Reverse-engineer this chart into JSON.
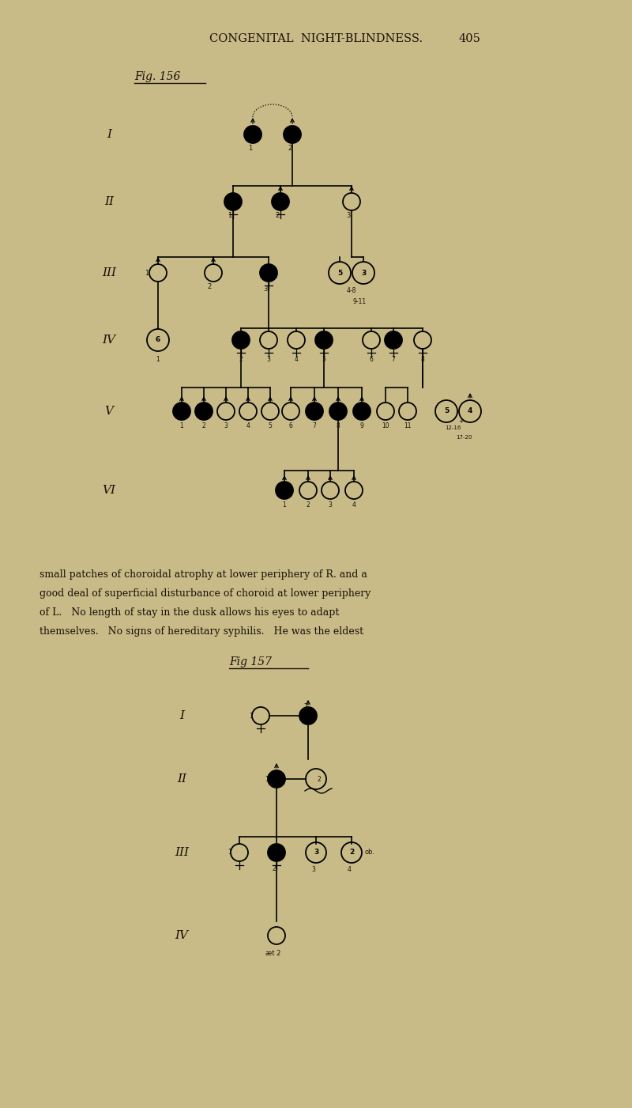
{
  "bg_color": "#c8bb88",
  "page_title": "CONGENITAL  NIGHT-BLINDNESS.",
  "page_number": "405",
  "fig156_label": "Fig. 156",
  "fig157_label": "Fig 157",
  "body_text_lines": [
    "small patches of choroidal atrophy at lower periphery of R. and a",
    "good deal of superficial disturbance of choroid at lower periphery",
    "of L.   No length of stay in the dusk allows his eyes to adapt",
    "themselves.   No signs of hereditary syphilis.   He was the eldest"
  ]
}
